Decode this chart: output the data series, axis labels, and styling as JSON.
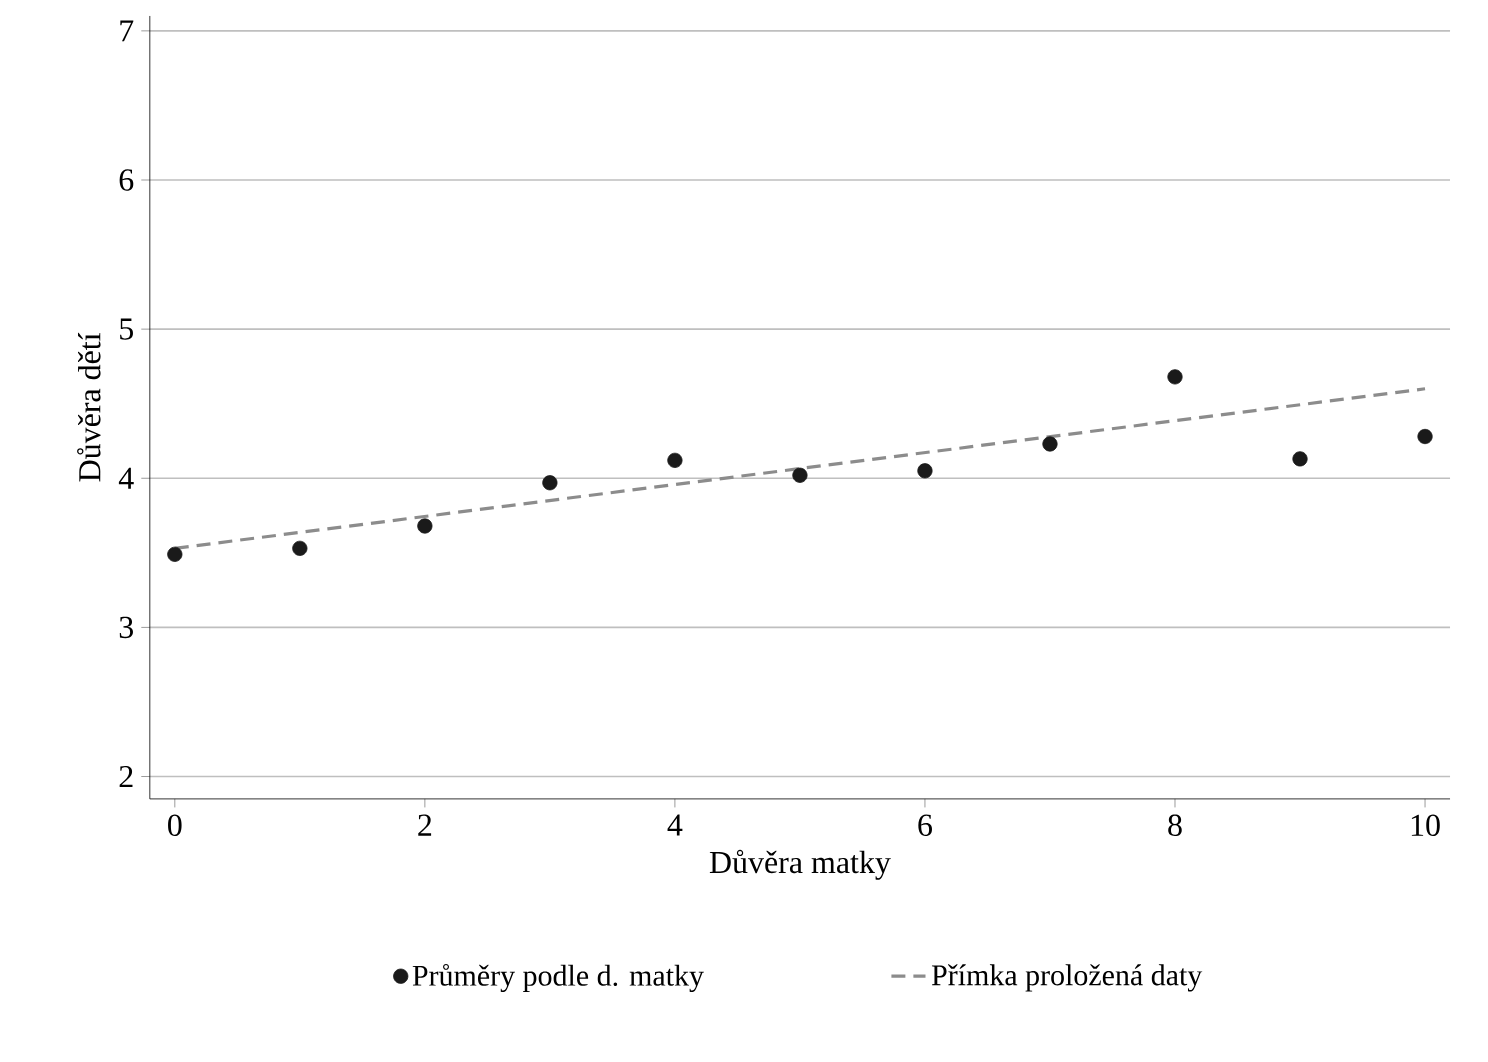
{
  "chart_data": {
    "type": "scatter",
    "xlabel": "Důvěra matky",
    "ylabel": "Důvěra dětí",
    "xlim": [
      -0.2,
      10.2
    ],
    "ylim": [
      1.85,
      7.1
    ],
    "xticks": [
      0,
      2,
      4,
      6,
      8,
      10
    ],
    "yticks": [
      2,
      3,
      4,
      5,
      6,
      7
    ],
    "grid": "y",
    "legend": "bottom",
    "series": [
      {
        "name": "Průměry podle d. matky",
        "color": "#1a1a1a",
        "marker": "circle",
        "x": [
          0,
          1,
          2,
          3,
          4,
          5,
          6,
          7,
          8,
          9,
          10
        ],
        "values": [
          3.49,
          3.53,
          3.68,
          3.97,
          4.12,
          4.02,
          4.05,
          4.23,
          4.68,
          4.13,
          4.28
        ]
      },
      {
        "name": "Přímka proložená daty",
        "type": "line",
        "color": "#8c8c8c",
        "line_style": "dashed",
        "marker": "none",
        "x": [
          0,
          10
        ],
        "values": [
          3.53,
          4.6
        ]
      }
    ]
  }
}
